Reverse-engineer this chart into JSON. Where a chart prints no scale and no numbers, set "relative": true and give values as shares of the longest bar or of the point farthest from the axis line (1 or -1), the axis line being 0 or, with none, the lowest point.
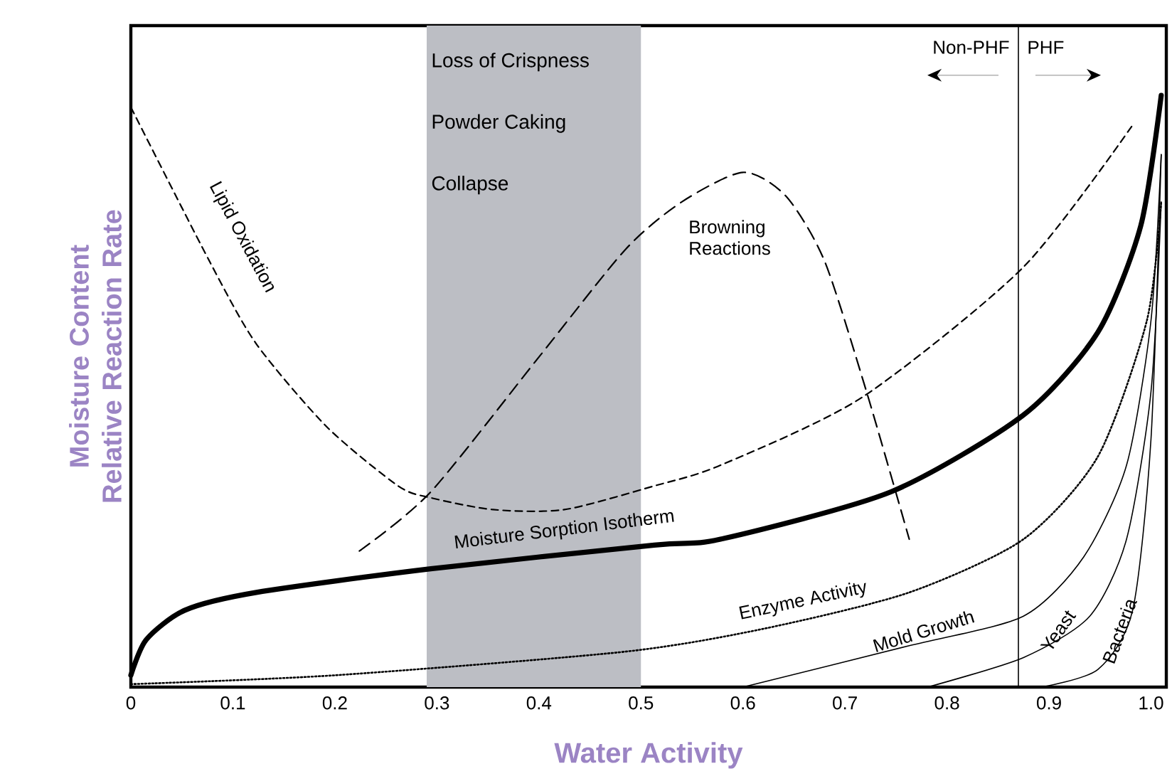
{
  "chart_data": {
    "type": "line",
    "relative": true,
    "xlabel": "Water Activity",
    "ylabel": "Moisture Content Relative Reaction Rate",
    "xlim": [
      0,
      1.015
    ],
    "xticks": [
      0,
      0.1,
      0.2,
      0.3,
      0.4,
      0.5,
      0.6,
      0.7,
      0.8,
      0.9,
      {
        "value": 1,
        "label": "1.0"
      }
    ],
    "bands": [
      {
        "axis": "x",
        "from": 0.29,
        "to": 0.5,
        "color": "#bcbec4"
      }
    ],
    "ref_lines": [
      {
        "axis": "x",
        "value": 0.87,
        "color": "#000000"
      }
    ],
    "annotations": [
      "Loss of Crispness",
      "Powder Caking",
      "Collapse",
      "Non-PHF",
      "PHF"
    ],
    "series": [
      {
        "name": "Lipid Oxidation",
        "color": "#000000",
        "line_style": "dashed",
        "x": [
          0.0,
          0.077,
          0.123,
          0.192,
          0.262,
          0.294,
          0.355,
          0.425,
          0.513,
          0.578,
          0.717,
          0.875,
          0.982
        ],
        "values": [
          0.98,
          0.72,
          0.58,
          0.44,
          0.34,
          0.32,
          0.3,
          0.3,
          0.34,
          0.375,
          0.49,
          0.71,
          0.95
        ]
      },
      {
        "name": "Browning Reactions",
        "color": "#000000",
        "line_style": "dashed",
        "x": [
          0.224,
          0.294,
          0.401,
          0.485,
          0.54,
          0.6,
          0.642,
          0.68,
          0.721,
          0.763
        ],
        "values": [
          0.23,
          0.33,
          0.56,
          0.74,
          0.82,
          0.87,
          0.83,
          0.72,
          0.5,
          0.25
        ]
      },
      {
        "name": "Moisture Sorption Isotherm",
        "color": "#000000",
        "line_style": "solid",
        "x": [
          0.0,
          0.015,
          0.053,
          0.123,
          0.294,
          0.513,
          0.578,
          0.745,
          0.875,
          0.948,
          0.99,
          1.01
        ],
        "values": [
          0.02,
          0.08,
          0.13,
          0.16,
          0.2,
          0.24,
          0.25,
          0.33,
          0.46,
          0.6,
          0.78,
          1.0
        ]
      },
      {
        "name": "Enzyme Activity",
        "color": "#000000",
        "line_style": "dotted",
        "x": [
          0.0,
          0.2,
          0.485,
          0.624,
          0.763,
          0.875,
          0.948,
          0.996,
          1.01
        ],
        "values": [
          0.005,
          0.02,
          0.06,
          0.1,
          0.16,
          0.25,
          0.39,
          0.62,
          0.82
        ]
      },
      {
        "name": "Mold Growth",
        "color": "#000000",
        "line_style": "solid",
        "x": [
          0.6,
          0.763,
          0.875,
          0.934,
          0.976,
          1.0,
          1.01
        ],
        "values": [
          0.0,
          0.07,
          0.12,
          0.22,
          0.375,
          0.62,
          0.9
        ]
      },
      {
        "name": "Yeast",
        "color": "#000000",
        "line_style": "solid",
        "x": [
          0.781,
          0.875,
          0.94,
          0.976,
          1.0,
          1.01
        ],
        "values": [
          0.0,
          0.05,
          0.12,
          0.25,
          0.5,
          0.82
        ]
      },
      {
        "name": "Bacteria",
        "color": "#000000",
        "line_style": "solid",
        "x": [
          0.893,
          0.948,
          0.982,
          1.0,
          1.01
        ],
        "values": [
          0.0,
          0.03,
          0.13,
          0.42,
          0.9
        ]
      }
    ]
  }
}
